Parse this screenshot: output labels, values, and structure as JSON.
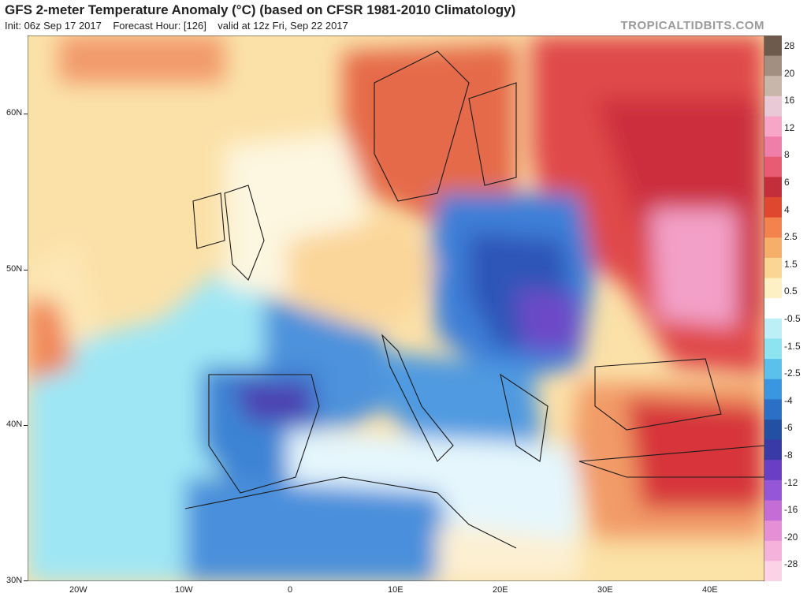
{
  "header": {
    "title": "GFS 2-meter Temperature Anomaly (°C) (based on CFSR 1981-2010 Climatology)",
    "init": "Init: 06z Sep 17 2017",
    "forecast_hour": "Forecast Hour: [126]",
    "valid": "valid at 12z Fri, Sep 22 2017",
    "brand": "TROPICALTIDBITS.COM"
  },
  "axes": {
    "y_labels": [
      "60N",
      "50N",
      "40N",
      "30N"
    ],
    "x_labels": [
      "20W",
      "10W",
      "0",
      "10E",
      "20E",
      "30E",
      "40E"
    ]
  },
  "colorbar": {
    "labels": [
      "28",
      "20",
      "16",
      "12",
      "8",
      "6",
      "4",
      "2.5",
      "1.5",
      "0.5",
      "-0.5",
      "-1.5",
      "-2.5",
      "-4",
      "-6",
      "-8",
      "-12",
      "-16",
      "-20",
      "-28"
    ],
    "colors": [
      "#6e5a4c",
      "#a38f81",
      "#c8b6aa",
      "#e8c9d5",
      "#f7a6c7",
      "#ef7fa8",
      "#e85b72",
      "#c42e3a",
      "#e0472f",
      "#f4824f",
      "#f7ae6a",
      "#fbd593",
      "#fdf0c4",
      "#ffffff",
      "#bdeff7",
      "#8de3f0",
      "#5cc0ec",
      "#3b96e2",
      "#2b6fc6",
      "#2450a3",
      "#3a39a8",
      "#6a3fc6",
      "#9557d7",
      "#c56dd6",
      "#e58fd6",
      "#f5b3dc",
      "#fbd2e6"
    ]
  }
}
